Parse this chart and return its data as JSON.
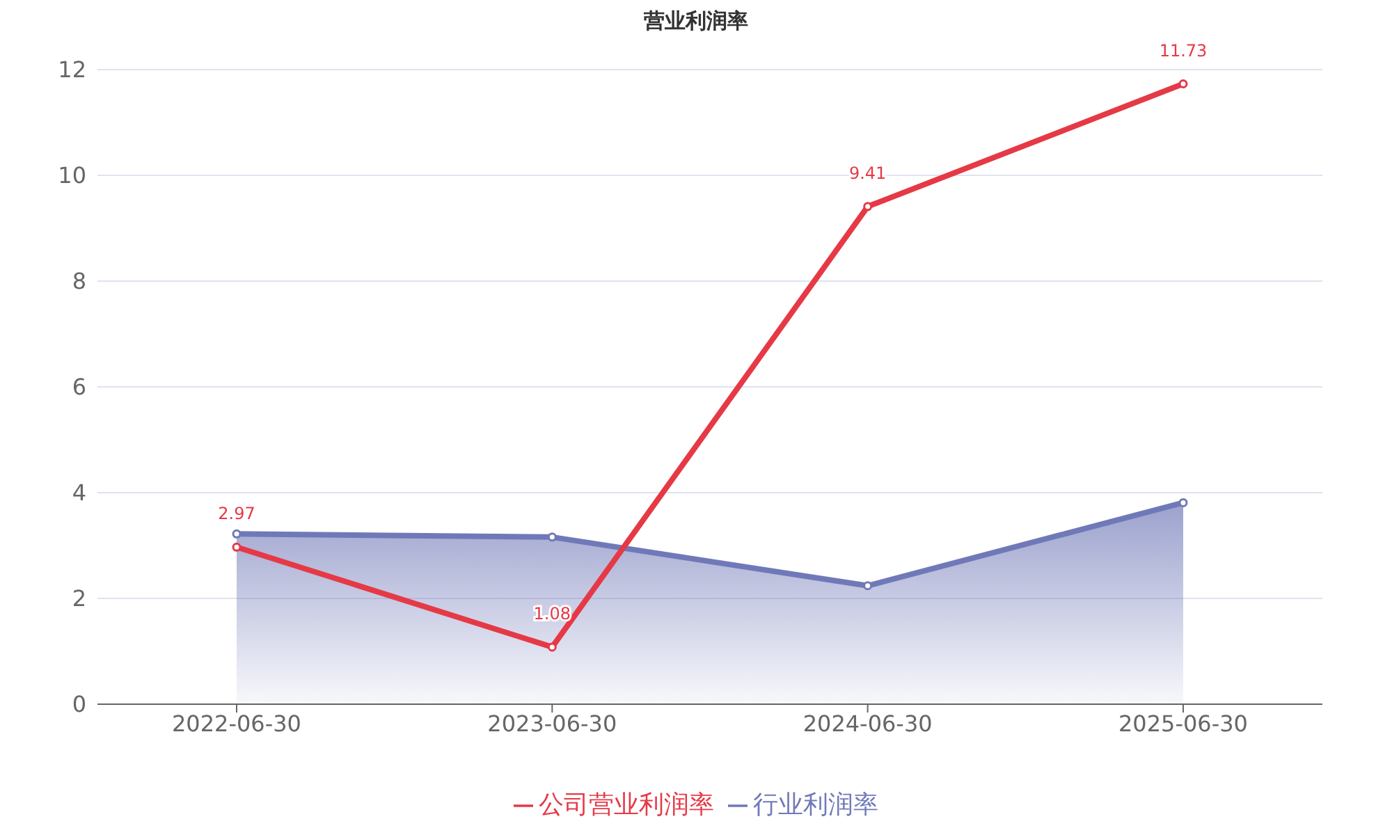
{
  "chart_data": {
    "type": "line",
    "title": "营业利润率",
    "categories": [
      "2022-06-30",
      "2023-06-30",
      "2024-06-30",
      "2025-06-30"
    ],
    "series": [
      {
        "name": "公司营业利润率",
        "color": "#e63946",
        "values": [
          2.97,
          1.08,
          9.41,
          11.73
        ],
        "value_labels": [
          "2.97",
          "1.08",
          "9.41",
          "11.73"
        ]
      },
      {
        "name": "行业利润率",
        "type": "area",
        "color": "#7079b8",
        "values": [
          3.22,
          3.16,
          2.24,
          3.81
        ]
      }
    ],
    "ylim": [
      0,
      12
    ],
    "yticks": [
      0,
      2,
      4,
      6,
      8,
      10,
      12
    ],
    "grid": "y",
    "legend": "bottom",
    "marker": "circle"
  }
}
